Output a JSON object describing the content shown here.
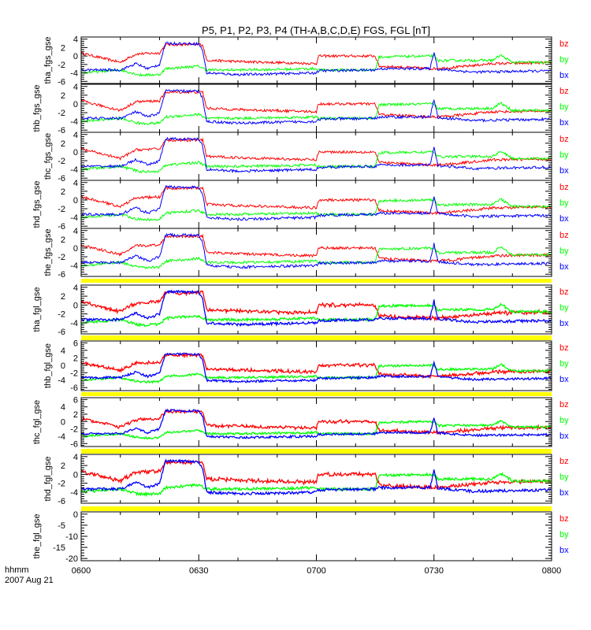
{
  "chart_data": {
    "type": "line",
    "title": "P5, P1, P2, P3, P4 (TH-A,B,C,D,E) FGS, FGL [nT]",
    "x_axis": {
      "unit": "minutes after 0600",
      "range": [
        0,
        120
      ],
      "tick_labels": [
        "0600",
        "0630",
        "0700",
        "0730",
        "0800"
      ],
      "tick_values": [
        0,
        30,
        60,
        90,
        120
      ],
      "label_line1": "hhmm",
      "label_line2": "2007 Aug 21"
    },
    "legend": [
      "bz",
      "by",
      "bx"
    ],
    "colors": {
      "bz": "#ff0000",
      "by": "#00ff00",
      "bx": "#0000ff",
      "separator": "#ffff00"
    },
    "profile": {
      "bz": {
        "x": [
          0,
          10,
          14,
          20,
          21.5,
          31,
          32,
          40,
          60,
          60.5,
          75,
          76,
          90,
          95,
          105,
          120
        ],
        "y": [
          0.7,
          -1.5,
          0.5,
          0.7,
          2.7,
          2.7,
          -1,
          -1.3,
          -1.8,
          0,
          0,
          -2.4,
          -3,
          -2.7,
          -1.8,
          -1.6
        ]
      },
      "by": {
        "x": [
          0,
          10,
          15,
          20,
          21.5,
          30,
          32,
          40,
          60,
          60.5,
          75,
          76,
          90,
          91,
          105,
          107,
          110,
          120
        ],
        "y": [
          -4,
          -3.3,
          -4.5,
          -4.4,
          -3,
          -2.4,
          -3.3,
          -3.3,
          -3,
          -3.3,
          -3.3,
          -0.2,
          0,
          -1.1,
          -1,
          0.2,
          -1.5,
          -1.5
        ]
      },
      "bx": {
        "x": [
          0,
          10,
          14,
          17,
          20,
          21.5,
          30,
          31,
          32,
          40,
          60,
          60.5,
          75,
          76,
          89,
          90,
          91,
          100,
          120
        ],
        "y": [
          -3.3,
          -3.3,
          -1.8,
          -3,
          -2,
          3,
          2.9,
          1.3,
          -4,
          -4.4,
          -4,
          -3.5,
          -3.3,
          -3,
          -3,
          1,
          -3.1,
          -3.8,
          -3.5
        ]
      }
    },
    "panels": [
      {
        "ylabel": "tha_fgs_gse",
        "ylim": [
          -6.5,
          4.5
        ],
        "yticks": [
          4,
          2,
          0,
          -2,
          -4,
          -6
        ],
        "has_data": true,
        "separator_below": false
      },
      {
        "ylabel": "thb_fgs_gse",
        "ylim": [
          -6.5,
          4.5
        ],
        "yticks": [
          4,
          2,
          0,
          -2,
          -4,
          -6
        ],
        "has_data": true,
        "separator_below": false
      },
      {
        "ylabel": "thc_fgs_gse",
        "ylim": [
          -6.5,
          4.5
        ],
        "yticks": [
          4,
          2,
          0,
          -2,
          -4,
          -6
        ],
        "has_data": true,
        "separator_below": false
      },
      {
        "ylabel": "thd_fgs_gse",
        "ylim": [
          -6.5,
          4.5
        ],
        "yticks": [
          4,
          2,
          0,
          -2,
          -4,
          -6
        ],
        "has_data": true,
        "separator_below": false
      },
      {
        "ylabel": "the_fgs_gse",
        "ylim": [
          -6.5,
          4.5
        ],
        "yticks": [
          4,
          2,
          0,
          -2,
          -4,
          -6
        ],
        "has_data": true,
        "separator_below": true
      },
      {
        "ylabel": "tha_fgl_gse",
        "ylim": [
          -6.5,
          4.5
        ],
        "yticks": [
          4,
          2,
          0,
          -2,
          -4,
          -6
        ],
        "has_data": true,
        "separator_below": true
      },
      {
        "ylabel": "thb_fgl_gse",
        "ylim": [
          -6.8,
          6.5
        ],
        "yticks": [
          6,
          4,
          2,
          0,
          -2,
          -4,
          -6
        ],
        "has_data": true,
        "separator_below": true
      },
      {
        "ylabel": "thc_fgl_gse",
        "ylim": [
          -6.8,
          6.5
        ],
        "yticks": [
          6,
          4,
          2,
          0,
          -2,
          -4,
          -6
        ],
        "has_data": true,
        "separator_below": true
      },
      {
        "ylabel": "thd_fgl_gse",
        "ylim": [
          -6.5,
          4.5
        ],
        "yticks": [
          4,
          2,
          0,
          -2,
          -4,
          -6
        ],
        "has_data": true,
        "separator_below": true
      },
      {
        "ylabel": "the_fgl_gse",
        "ylim": [
          -21,
          1
        ],
        "yticks": [
          0,
          -5,
          -10,
          -15,
          -20
        ],
        "has_data": false,
        "separator_below": false
      }
    ]
  }
}
